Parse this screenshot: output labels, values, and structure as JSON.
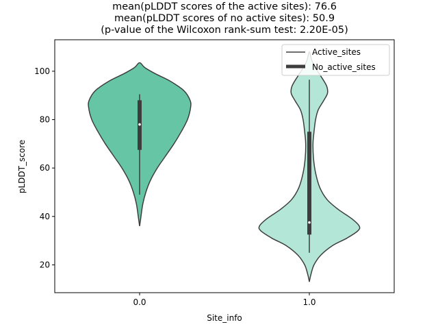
{
  "chart_data": {
    "type": "violin",
    "title_lines": [
      "mean(pLDDT scores of the active sites): 76.6",
      "mean(pLDDT scores of no active sites): 50.9",
      "(p-value of the Wilcoxon rank-sum test: 2.20E-05)"
    ],
    "xlabel": "Site_info",
    "ylabel": "pLDDT_score",
    "ylim": [
      8.5,
      113
    ],
    "yticks": [
      20,
      40,
      60,
      80,
      100
    ],
    "categories": [
      "0.0",
      "1.0"
    ],
    "legend": {
      "placement": "top-right",
      "entries": [
        {
          "label": "Active_sites",
          "style": "thin-line"
        },
        {
          "label": "No_active_sites",
          "style": "thick-line"
        }
      ]
    },
    "series": [
      {
        "name": "0.0",
        "color": "#66c5a4",
        "median": 78,
        "q1": 67.5,
        "q3": 88,
        "whisker_low": 49,
        "whisker_high": 90.5,
        "density": [
          [
            36,
            0
          ],
          [
            39,
            0.02
          ],
          [
            45,
            0.06
          ],
          [
            50,
            0.12
          ],
          [
            55,
            0.21
          ],
          [
            60,
            0.34
          ],
          [
            65,
            0.5
          ],
          [
            70,
            0.66
          ],
          [
            75,
            0.8
          ],
          [
            80,
            0.92
          ],
          [
            85,
            0.98
          ],
          [
            88,
            0.97
          ],
          [
            92,
            0.85
          ],
          [
            96,
            0.58
          ],
          [
            99,
            0.3
          ],
          [
            101.5,
            0.1
          ],
          [
            103.5,
            0
          ]
        ]
      },
      {
        "name": "1.0",
        "color": "#b3e6d6",
        "median": 37.5,
        "q1": 32.5,
        "q3": 75,
        "whisker_low": 25,
        "whisker_high": 96.5,
        "density": [
          [
            13,
            0
          ],
          [
            16,
            0.03
          ],
          [
            20,
            0.09
          ],
          [
            24,
            0.22
          ],
          [
            28,
            0.45
          ],
          [
            31,
            0.72
          ],
          [
            34,
            0.93
          ],
          [
            36,
            0.96
          ],
          [
            39,
            0.82
          ],
          [
            43,
            0.55
          ],
          [
            47,
            0.34
          ],
          [
            52,
            0.2
          ],
          [
            58,
            0.12
          ],
          [
            64,
            0.08
          ],
          [
            70,
            0.07
          ],
          [
            75,
            0.09
          ],
          [
            80,
            0.12
          ],
          [
            84,
            0.17
          ],
          [
            88,
            0.28
          ],
          [
            91,
            0.35
          ],
          [
            94,
            0.33
          ],
          [
            98,
            0.22
          ],
          [
            102,
            0.1
          ],
          [
            105,
            0.04
          ],
          [
            108,
            0
          ]
        ]
      }
    ]
  }
}
